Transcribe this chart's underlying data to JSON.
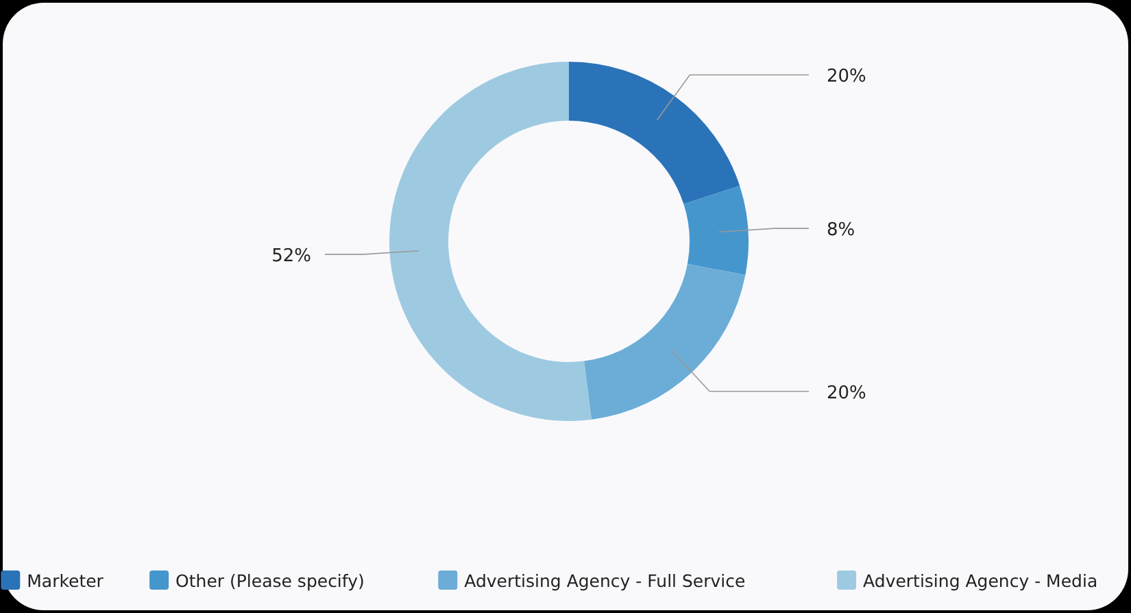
{
  "chart_data": {
    "type": "donut",
    "categories": [
      "Marketer",
      "Other (Please specify)",
      "Advertising Agency - Full Service",
      "Advertising Agency - Media"
    ],
    "values": [
      20,
      8,
      20,
      52
    ],
    "colors": [
      "#2a73b8",
      "#4596cd",
      "#6badd7",
      "#9ecae1"
    ],
    "value_labels": [
      "20%",
      "8%",
      "20%",
      "52%"
    ],
    "legend": "bottom"
  }
}
